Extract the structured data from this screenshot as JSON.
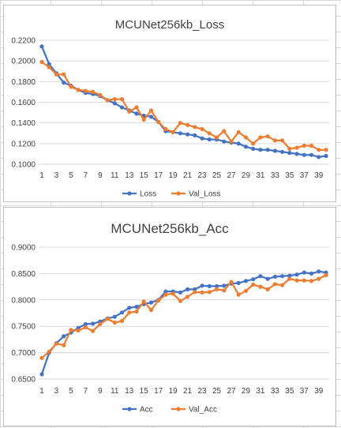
{
  "chart_data": [
    {
      "type": "line",
      "title": "MCUNet256kb_Loss",
      "xlabel": "",
      "ylabel": "",
      "ylim": [
        0.1,
        0.22
      ],
      "yticks": [
        "0.1000",
        "0.1200",
        "0.1400",
        "0.1600",
        "0.1800",
        "0.2000",
        "0.2200"
      ],
      "x": [
        1,
        2,
        3,
        4,
        5,
        6,
        7,
        8,
        9,
        10,
        11,
        12,
        13,
        14,
        15,
        16,
        17,
        18,
        19,
        20,
        21,
        22,
        23,
        24,
        25,
        26,
        27,
        28,
        29,
        30,
        31,
        32,
        33,
        34,
        35,
        36,
        37,
        38,
        39,
        40
      ],
      "xtick_labels": [
        "1",
        "3",
        "5",
        "7",
        "9",
        "11",
        "13",
        "15",
        "17",
        "19",
        "21",
        "23",
        "25",
        "27",
        "29",
        "31",
        "33",
        "35",
        "37",
        "39"
      ],
      "grid": true,
      "legend_position": "bottom",
      "series": [
        {
          "name": "Loss",
          "color": "#4472c4",
          "values": [
            0.214,
            0.197,
            0.188,
            0.179,
            0.176,
            0.172,
            0.169,
            0.168,
            0.166,
            0.162,
            0.159,
            0.155,
            0.152,
            0.149,
            0.147,
            0.146,
            0.141,
            0.132,
            0.131,
            0.13,
            0.129,
            0.128,
            0.125,
            0.124,
            0.124,
            0.122,
            0.121,
            0.12,
            0.117,
            0.115,
            0.114,
            0.114,
            0.113,
            0.112,
            0.111,
            0.11,
            0.109,
            0.109,
            0.107,
            0.108
          ]
        },
        {
          "name": "Val_Loss",
          "color": "#ed7d31",
          "values": [
            0.199,
            0.194,
            0.187,
            0.187,
            0.175,
            0.172,
            0.171,
            0.17,
            0.167,
            0.162,
            0.163,
            0.163,
            0.151,
            0.155,
            0.143,
            0.152,
            0.141,
            0.134,
            0.131,
            0.14,
            0.138,
            0.136,
            0.134,
            0.13,
            0.126,
            0.132,
            0.122,
            0.131,
            0.126,
            0.12,
            0.126,
            0.127,
            0.123,
            0.123,
            0.115,
            0.116,
            0.118,
            0.118,
            0.114,
            0.114
          ]
        }
      ]
    },
    {
      "type": "line",
      "title": "MCUNet256kb_Acc",
      "xlabel": "",
      "ylabel": "",
      "ylim": [
        0.65,
        0.9
      ],
      "yticks": [
        "0.6500",
        "0.7000",
        "0.7500",
        "0.8000",
        "0.8500",
        "0.9000"
      ],
      "x": [
        1,
        2,
        3,
        4,
        5,
        6,
        7,
        8,
        9,
        10,
        11,
        12,
        13,
        14,
        15,
        16,
        17,
        18,
        19,
        20,
        21,
        22,
        23,
        24,
        25,
        26,
        27,
        28,
        29,
        30,
        31,
        32,
        33,
        34,
        35,
        36,
        37,
        38,
        39,
        40
      ],
      "xtick_labels": [
        "1",
        "3",
        "5",
        "7",
        "9",
        "11",
        "13",
        "15",
        "17",
        "19",
        "21",
        "23",
        "25",
        "27",
        "29",
        "31",
        "33",
        "35",
        "37",
        "39"
      ],
      "grid": true,
      "legend_position": "bottom",
      "series": [
        {
          "name": "Acc",
          "color": "#4472c4",
          "values": [
            0.659,
            0.7,
            0.718,
            0.731,
            0.738,
            0.747,
            0.754,
            0.755,
            0.759,
            0.765,
            0.768,
            0.776,
            0.785,
            0.787,
            0.792,
            0.795,
            0.8,
            0.816,
            0.816,
            0.814,
            0.82,
            0.82,
            0.827,
            0.826,
            0.826,
            0.827,
            0.831,
            0.832,
            0.836,
            0.839,
            0.845,
            0.84,
            0.844,
            0.845,
            0.846,
            0.848,
            0.852,
            0.85,
            0.854,
            0.852
          ]
        },
        {
          "name": "Val_Acc",
          "color": "#ed7d31",
          "values": [
            0.69,
            0.702,
            0.717,
            0.714,
            0.743,
            0.742,
            0.748,
            0.741,
            0.754,
            0.764,
            0.757,
            0.76,
            0.776,
            0.778,
            0.797,
            0.781,
            0.799,
            0.81,
            0.812,
            0.798,
            0.806,
            0.815,
            0.814,
            0.815,
            0.82,
            0.818,
            0.834,
            0.81,
            0.817,
            0.829,
            0.825,
            0.82,
            0.83,
            0.828,
            0.84,
            0.837,
            0.837,
            0.836,
            0.84,
            0.847
          ]
        }
      ]
    }
  ]
}
